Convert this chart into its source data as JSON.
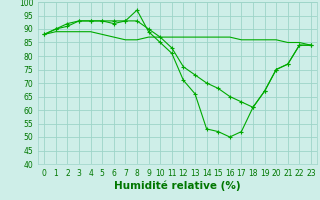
{
  "xlabel": "Humidité relative (%)",
  "xlim": [
    -0.5,
    23.5
  ],
  "ylim": [
    40,
    100
  ],
  "yticks": [
    40,
    45,
    50,
    55,
    60,
    65,
    70,
    75,
    80,
    85,
    90,
    95,
    100
  ],
  "xticks": [
    0,
    1,
    2,
    3,
    4,
    5,
    6,
    7,
    8,
    9,
    10,
    11,
    12,
    13,
    14,
    15,
    16,
    17,
    18,
    19,
    20,
    21,
    22,
    23
  ],
  "background_color": "#ceeee8",
  "grid_color": "#9dd4c8",
  "line_color": "#00aa00",
  "series": [
    {
      "x": [
        0,
        1,
        2,
        3,
        4,
        5,
        6,
        7,
        8,
        9,
        10,
        11,
        12,
        13,
        14,
        15,
        16,
        17,
        18,
        19,
        20,
        21,
        22,
        23
      ],
      "y": [
        88,
        90,
        91,
        93,
        93,
        93,
        93,
        93,
        97,
        89,
        85,
        81,
        71,
        66,
        53,
        52,
        50,
        52,
        61,
        67,
        75,
        77,
        84,
        84
      ],
      "marker": "+"
    },
    {
      "x": [
        0,
        1,
        2,
        3,
        4,
        5,
        6,
        7,
        8,
        9,
        10,
        11,
        12,
        13,
        14,
        15,
        16,
        17,
        18,
        19,
        20,
        21,
        22,
        23
      ],
      "y": [
        88,
        90,
        92,
        93,
        93,
        93,
        92,
        93,
        93,
        90,
        87,
        83,
        76,
        73,
        70,
        68,
        65,
        63,
        61,
        67,
        75,
        77,
        84,
        84
      ],
      "marker": "+"
    },
    {
      "x": [
        0,
        1,
        2,
        3,
        4,
        5,
        6,
        7,
        8,
        9,
        10,
        11,
        12,
        13,
        14,
        15,
        16,
        17,
        18,
        19,
        20,
        21,
        22,
        23
      ],
      "y": [
        88,
        89,
        89,
        89,
        89,
        88,
        87,
        86,
        86,
        87,
        87,
        87,
        87,
        87,
        87,
        87,
        87,
        86,
        86,
        86,
        86,
        85,
        85,
        84
      ],
      "marker": null
    }
  ],
  "font_color": "#007700",
  "tick_fontsize": 5.5,
  "label_fontsize": 7.5
}
